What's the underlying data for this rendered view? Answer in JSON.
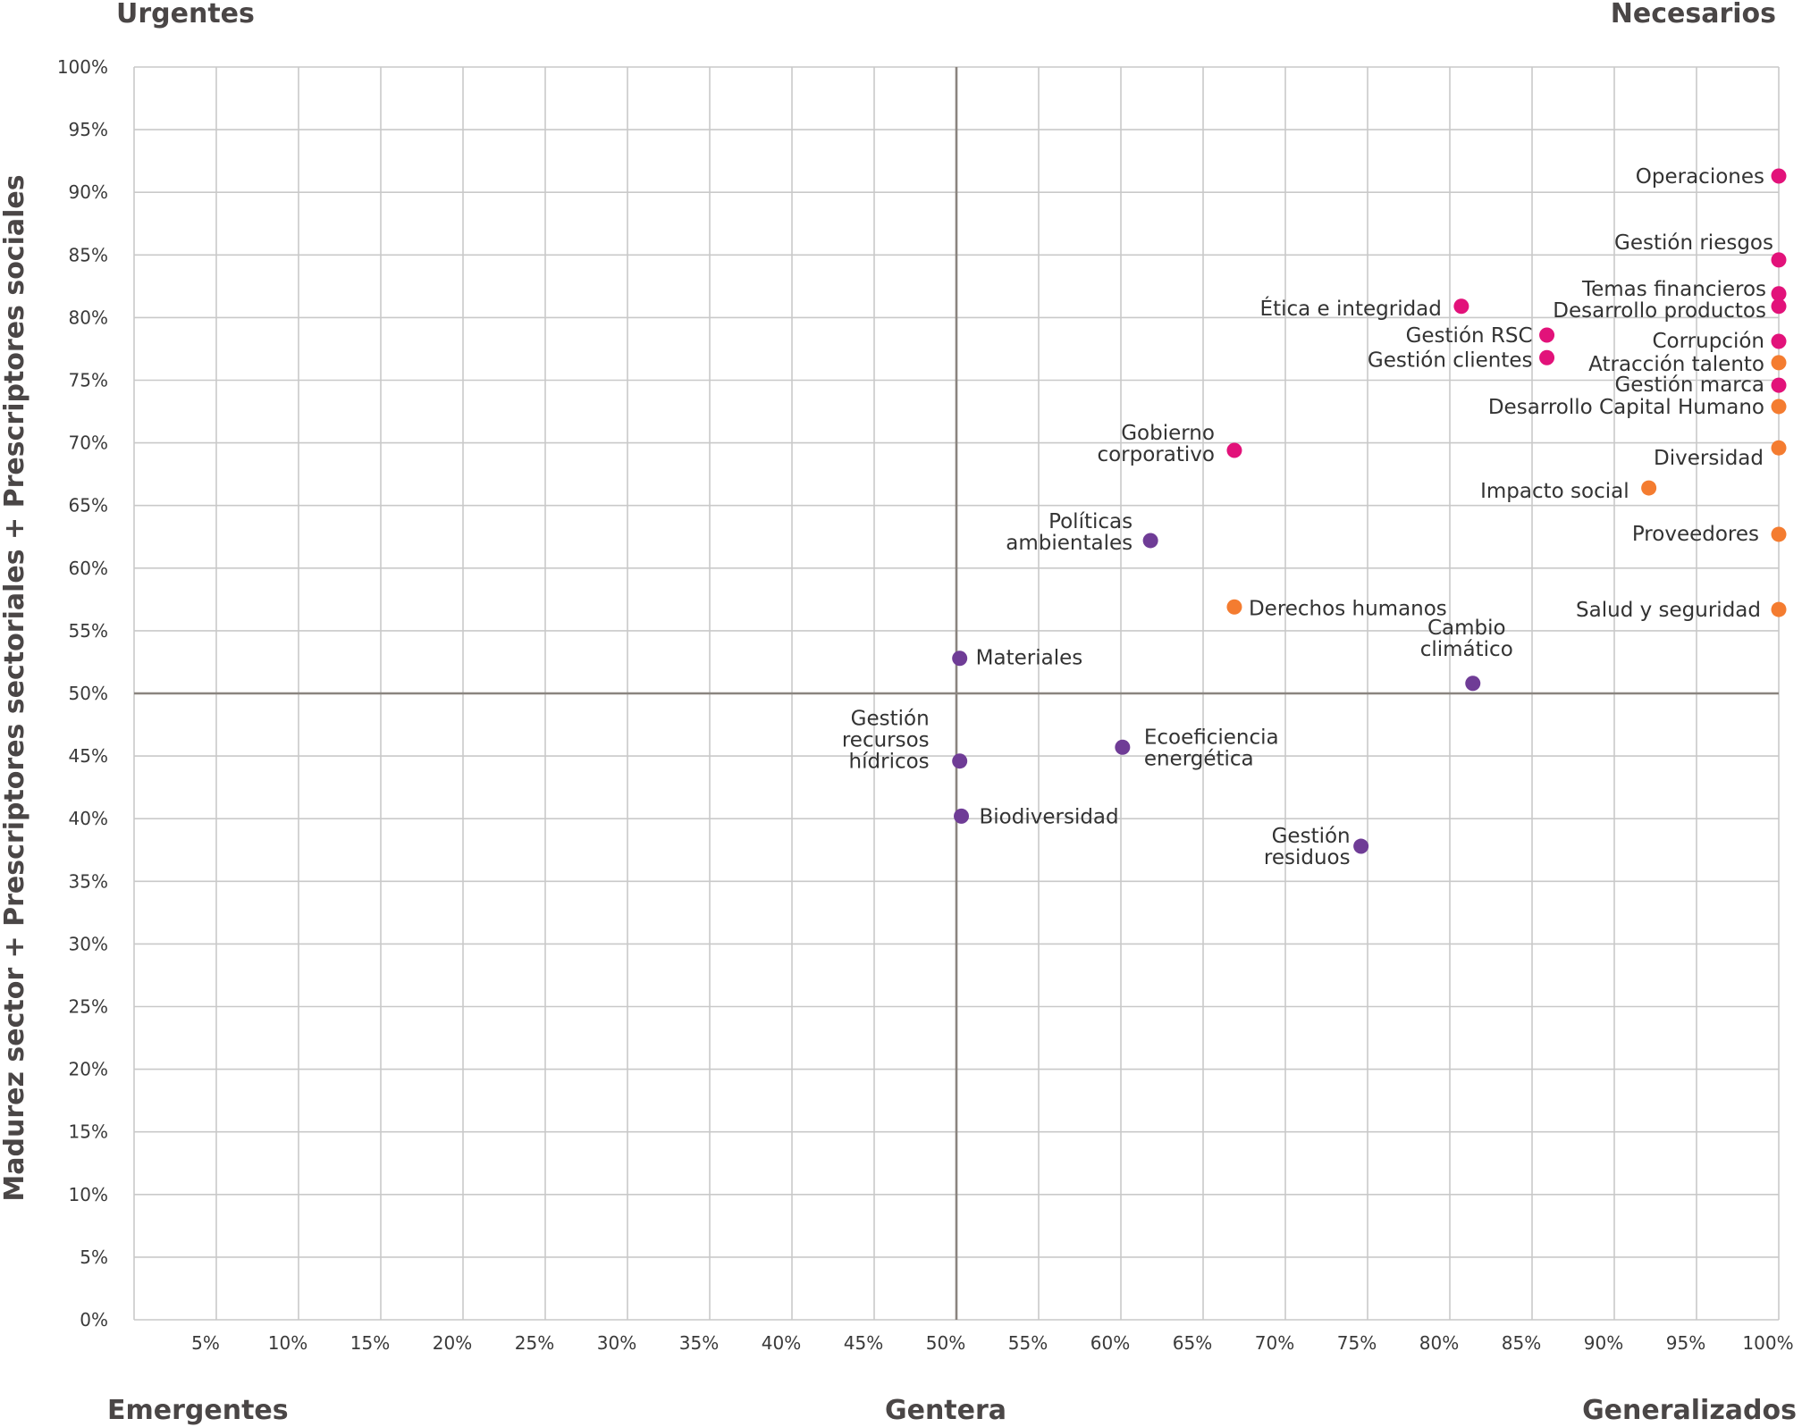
{
  "chart_data": {
    "type": "scatter",
    "title": "",
    "xlabel": "",
    "ylabel": "Madurez sector + Prescriptores sectoriales + Prescriptores sociales",
    "xlim": [
      0,
      100
    ],
    "ylim": [
      0,
      100
    ],
    "grid": true,
    "reference_lines": {
      "x": 50,
      "y": 50
    },
    "x_ticks": [
      "5%",
      "10%",
      "15%",
      "20%",
      "25%",
      "30%",
      "35%",
      "40%",
      "45%",
      "50%",
      "55%",
      "60%",
      "65%",
      "70%",
      "75%",
      "80%",
      "85%",
      "90%",
      "95%",
      "100%"
    ],
    "y_ticks": [
      "0%",
      "5%",
      "10%",
      "15%",
      "20%",
      "25%",
      "30%",
      "35%",
      "40%",
      "45%",
      "50%",
      "55%",
      "60%",
      "65%",
      "70%",
      "75%",
      "80%",
      "85%",
      "90%",
      "95%",
      "100%"
    ],
    "quadrant_labels": {
      "top_left": "Urgentes",
      "top_right": "Necesarios",
      "bottom_left": "Emergentes",
      "bottom_center": "Gentera",
      "bottom_right": "Generalizados"
    },
    "colors": {
      "magenta": "#e2127a",
      "orange": "#f47c30",
      "purple": "#6f3c96"
    },
    "points": [
      {
        "label": [
          "Operaciones"
        ],
        "x": 100,
        "y": 91.3,
        "color": "magenta",
        "anchor": "end",
        "dx": -16,
        "dy": 0
      },
      {
        "label": [
          "Gestión riesgos"
        ],
        "x": 100,
        "y": 84.6,
        "color": "magenta",
        "anchor": "end",
        "dx": -6,
        "dy": -20
      },
      {
        "label": [
          "Temas financieros"
        ],
        "x": 100,
        "y": 81.9,
        "color": "magenta",
        "anchor": "end",
        "dx": -14,
        "dy": -6
      },
      {
        "label": [
          "Desarrollo productos"
        ],
        "x": 100,
        "y": 80.9,
        "color": "magenta",
        "anchor": "end",
        "dx": -14,
        "dy": 4
      },
      {
        "label": [
          "Ética e integridad"
        ],
        "x": 80.7,
        "y": 80.9,
        "color": "magenta",
        "anchor": "end",
        "dx": -22,
        "dy": 2
      },
      {
        "label": [
          "Gestión RSC"
        ],
        "x": 85.9,
        "y": 78.6,
        "color": "magenta",
        "anchor": "end",
        "dx": -16,
        "dy": 0
      },
      {
        "label": [
          "Corrupción"
        ],
        "x": 100,
        "y": 78.1,
        "color": "magenta",
        "anchor": "end",
        "dx": -16,
        "dy": -1
      },
      {
        "label": [
          "Gestión clientes"
        ],
        "x": 85.9,
        "y": 76.8,
        "color": "magenta",
        "anchor": "end",
        "dx": -16,
        "dy": 2
      },
      {
        "label": [
          "Atracción talento"
        ],
        "x": 100,
        "y": 76.4,
        "color": "orange",
        "anchor": "end",
        "dx": -16,
        "dy": 1
      },
      {
        "label": [
          "Gestión marca"
        ],
        "x": 100,
        "y": 74.6,
        "color": "magenta",
        "anchor": "end",
        "dx": -16,
        "dy": -1
      },
      {
        "label": [
          "Desarrollo Capital Humano"
        ],
        "x": 100,
        "y": 72.9,
        "color": "orange",
        "anchor": "end",
        "dx": -16,
        "dy": 0
      },
      {
        "label": [
          "Diversidad"
        ],
        "x": 100,
        "y": 69.6,
        "color": "orange",
        "anchor": "end",
        "dx": -17,
        "dy": 11
      },
      {
        "label": [
          "Gobierno",
          "corporativo"
        ],
        "x": 66.9,
        "y": 69.4,
        "color": "magenta",
        "anchor": "end",
        "dx": -22,
        "dy": -8
      },
      {
        "label": [
          "Impacto social"
        ],
        "x": 92.1,
        "y": 66.4,
        "color": "orange",
        "anchor": "end",
        "dx": -22,
        "dy": 3
      },
      {
        "label": [
          "Proveedores"
        ],
        "x": 100,
        "y": 62.7,
        "color": "orange",
        "anchor": "end",
        "dx": -22,
        "dy": -1
      },
      {
        "label": [
          "Políticas",
          "ambientales"
        ],
        "x": 61.8,
        "y": 62.2,
        "color": "purple",
        "anchor": "end",
        "dx": -20,
        "dy": -10
      },
      {
        "label": [
          "Derechos humanos"
        ],
        "x": 66.9,
        "y": 56.9,
        "color": "orange",
        "anchor": "start",
        "dx": 16,
        "dy": 1
      },
      {
        "label": [
          "Salud y seguridad"
        ],
        "x": 100,
        "y": 56.7,
        "color": "orange",
        "anchor": "end",
        "dx": -20,
        "dy": 0
      },
      {
        "label": [
          "Materiales"
        ],
        "x": 50.2,
        "y": 52.8,
        "color": "purple",
        "anchor": "start",
        "dx": 18,
        "dy": -1
      },
      {
        "label": [
          "Cambio",
          "climático"
        ],
        "x": 81.4,
        "y": 50.8,
        "color": "purple",
        "anchor": "middle",
        "dx": -7,
        "dy": -51
      },
      {
        "label": [
          "Ecoeficiencia",
          "energética"
        ],
        "x": 60.1,
        "y": 45.7,
        "color": "purple",
        "anchor": "start",
        "dx": 24,
        "dy": 0
      },
      {
        "label": [
          "Gestión",
          "recursos",
          "hídricos"
        ],
        "x": 50.2,
        "y": 44.6,
        "color": "purple",
        "anchor": "end",
        "dx": -34,
        "dy": -24
      },
      {
        "label": [
          "Biodiversidad"
        ],
        "x": 50.3,
        "y": 40.2,
        "color": "purple",
        "anchor": "start",
        "dx": 20,
        "dy": 0
      },
      {
        "label": [
          "Gestión",
          "residuos"
        ],
        "x": 74.6,
        "y": 37.8,
        "color": "purple",
        "anchor": "end",
        "dx": -12,
        "dy": 0
      }
    ]
  }
}
